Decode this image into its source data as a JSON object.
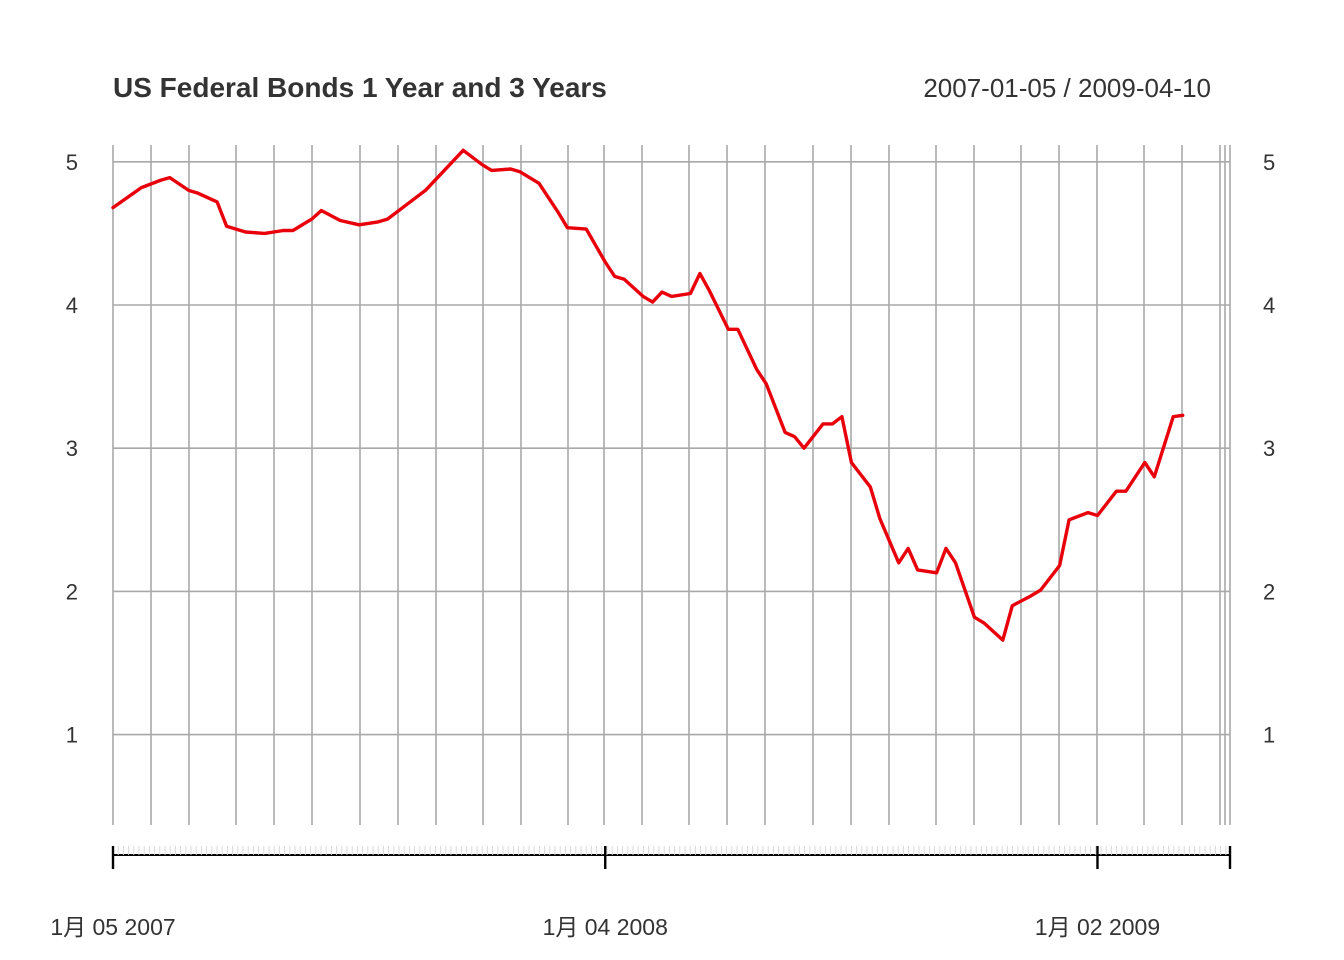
{
  "chart_data": {
    "type": "line",
    "title": "US Federal Bonds 1 Year and 3 Years",
    "date_range_label": "2007-01-05 / 2009-04-10",
    "xlabel": "",
    "ylabel": "",
    "grid": true,
    "x_range": [
      "2007-01-05",
      "2009-04-10"
    ],
    "ylim": [
      0.35,
      5.1
    ],
    "y_ticks": [
      "1",
      "2",
      "3",
      "4",
      "5"
    ],
    "x_ticks": [
      {
        "date": "2007-01-05",
        "label": "1月 05 2007"
      },
      {
        "date": "2008-01-04",
        "label": "1月 04 2008"
      },
      {
        "date": "2009-01-02",
        "label": "1月 02 2009"
      }
    ],
    "series": [
      {
        "color": "#e8000b",
        "points": [
          [
            "2007-01-05",
            4.68
          ],
          [
            "2007-01-26",
            4.82
          ],
          [
            "2007-02-09",
            4.87
          ],
          [
            "2007-02-16",
            4.89
          ],
          [
            "2007-03-02",
            4.8
          ],
          [
            "2007-03-09",
            4.78
          ],
          [
            "2007-03-23",
            4.72
          ],
          [
            "2007-03-30",
            4.55
          ],
          [
            "2007-04-13",
            4.51
          ],
          [
            "2007-04-27",
            4.5
          ],
          [
            "2007-05-11",
            4.52
          ],
          [
            "2007-05-18",
            4.52
          ],
          [
            "2007-06-01",
            4.6
          ],
          [
            "2007-06-08",
            4.66
          ],
          [
            "2007-06-22",
            4.59
          ],
          [
            "2007-07-06",
            4.56
          ],
          [
            "2007-07-20",
            4.58
          ],
          [
            "2007-07-27",
            4.6
          ],
          [
            "2007-08-10",
            4.7
          ],
          [
            "2007-08-24",
            4.8
          ],
          [
            "2007-09-07",
            4.94
          ],
          [
            "2007-09-21",
            5.08
          ],
          [
            "2007-10-05",
            4.98
          ],
          [
            "2007-10-12",
            4.94
          ],
          [
            "2007-10-26",
            4.95
          ],
          [
            "2007-11-02",
            4.93
          ],
          [
            "2007-11-16",
            4.85
          ],
          [
            "2007-11-30",
            4.65
          ],
          [
            "2007-12-07",
            4.54
          ],
          [
            "2007-12-21",
            4.53
          ],
          [
            "2008-01-04",
            4.3
          ],
          [
            "2008-01-11",
            4.2
          ],
          [
            "2008-01-18",
            4.18
          ],
          [
            "2008-02-01",
            4.06
          ],
          [
            "2008-02-08",
            4.02
          ],
          [
            "2008-02-15",
            4.09
          ],
          [
            "2008-02-22",
            4.06
          ],
          [
            "2008-03-07",
            4.08
          ],
          [
            "2008-03-14",
            4.22
          ],
          [
            "2008-03-21",
            4.1
          ],
          [
            "2008-04-04",
            3.83
          ],
          [
            "2008-04-11",
            3.83
          ],
          [
            "2008-04-25",
            3.55
          ],
          [
            "2008-05-02",
            3.45
          ],
          [
            "2008-05-16",
            3.11
          ],
          [
            "2008-05-23",
            3.08
          ],
          [
            "2008-05-30",
            3.0
          ],
          [
            "2008-06-13",
            3.17
          ],
          [
            "2008-06-20",
            3.17
          ],
          [
            "2008-06-27",
            3.22
          ],
          [
            "2008-07-04",
            2.9
          ],
          [
            "2008-07-18",
            2.73
          ],
          [
            "2008-07-25",
            2.51
          ],
          [
            "2008-08-08",
            2.2
          ],
          [
            "2008-08-15",
            2.3
          ],
          [
            "2008-08-22",
            2.15
          ],
          [
            "2008-09-05",
            2.13
          ],
          [
            "2008-09-12",
            2.3
          ],
          [
            "2008-09-19",
            2.2
          ],
          [
            "2008-10-03",
            1.82
          ],
          [
            "2008-10-10",
            1.78
          ],
          [
            "2008-10-24",
            1.66
          ],
          [
            "2008-10-31",
            1.9
          ],
          [
            "2008-11-14",
            1.97
          ],
          [
            "2008-11-21",
            2.01
          ],
          [
            "2008-12-05",
            2.18
          ],
          [
            "2008-12-12",
            2.5
          ],
          [
            "2008-12-26",
            2.55
          ],
          [
            "2009-01-02",
            2.53
          ],
          [
            "2009-01-16",
            2.7
          ],
          [
            "2009-01-23",
            2.7
          ],
          [
            "2009-02-06",
            2.9
          ],
          [
            "2009-02-13",
            2.8
          ],
          [
            "2009-02-27",
            3.22
          ],
          [
            "2009-03-06",
            3.23
          ]
        ],
        "name": ""
      }
    ]
  }
}
